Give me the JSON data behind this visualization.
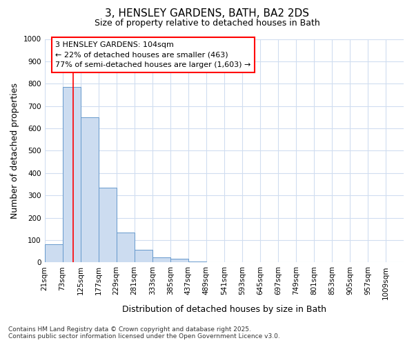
{
  "title_line1": "3, HENSLEY GARDENS, BATH, BA2 2DS",
  "title_line2": "Size of property relative to detached houses in Bath",
  "xlabel": "Distribution of detached houses by size in Bath",
  "ylabel": "Number of detached properties",
  "bin_edges": [
    21,
    73,
    125,
    177,
    229,
    281,
    333,
    385,
    437,
    489,
    541,
    593,
    645,
    697,
    749,
    801,
    853,
    905,
    957,
    1009,
    1061
  ],
  "bar_heights": [
    80,
    785,
    648,
    335,
    133,
    57,
    22,
    15,
    5,
    0,
    0,
    0,
    0,
    0,
    0,
    0,
    0,
    0,
    0,
    0
  ],
  "bar_color": "#ccdcf0",
  "bar_edge_color": "#6699cc",
  "red_line_x": 104,
  "ylim": [
    0,
    1000
  ],
  "yticks": [
    0,
    100,
    200,
    300,
    400,
    500,
    600,
    700,
    800,
    900,
    1000
  ],
  "annotation_title": "3 HENSLEY GARDENS: 104sqm",
  "annotation_line2": "← 22% of detached houses are smaller (463)",
  "annotation_line3": "77% of semi-detached houses are larger (1,603) →",
  "footer_line1": "Contains HM Land Registry data © Crown copyright and database right 2025.",
  "footer_line2": "Contains public sector information licensed under the Open Government Licence v3.0.",
  "background_color": "#ffffff",
  "grid_color": "#d0ddf0",
  "title_fontsize": 11,
  "subtitle_fontsize": 9,
  "axis_label_fontsize": 9,
  "tick_fontsize": 7.5,
  "annotation_fontsize": 8,
  "footer_fontsize": 6.5
}
